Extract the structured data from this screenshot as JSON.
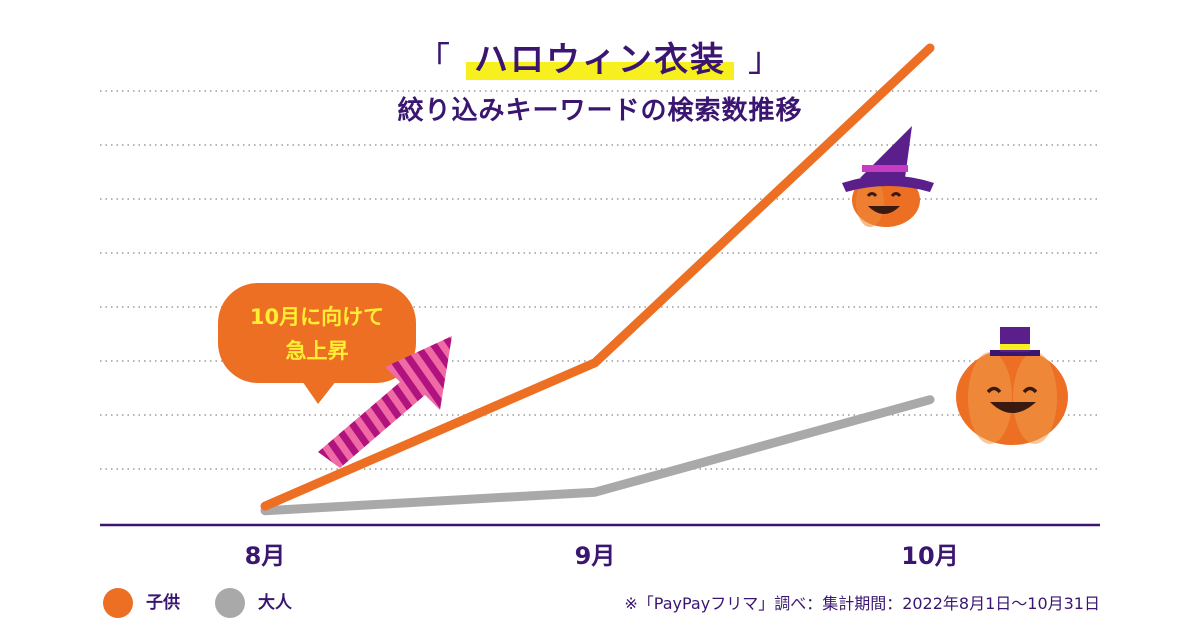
{
  "title": {
    "open_bracket": "「",
    "main": "ハロウィン衣装",
    "close_bracket": "」",
    "subtitle": "絞り込みキーワードの検索数推移"
  },
  "callout": {
    "line1": "10月に向けて",
    "line2": "急上昇"
  },
  "footnote": "※「PayPayフリマ」調べ：集計期間：2022年8月1日〜10月31日",
  "colors": {
    "title": "#3a1670",
    "axis": "#3a1670",
    "highlight": "#f7f01e",
    "callout_bg": "#ec6f23",
    "callout_text": "#ffee33"
  },
  "chart_data": {
    "type": "line",
    "categories": [
      "8月",
      "9月",
      "10月"
    ],
    "series": [
      {
        "name": "子供",
        "color": "#ec6f23",
        "values": [
          1,
          32,
          100
        ]
      },
      {
        "name": "大人",
        "color": "#a9a9a9",
        "values": [
          0,
          4,
          24
        ]
      }
    ],
    "ylim": [
      -2,
      100
    ],
    "grid": true,
    "y_tick_labels": false,
    "legend_position": "bottom-left"
  }
}
